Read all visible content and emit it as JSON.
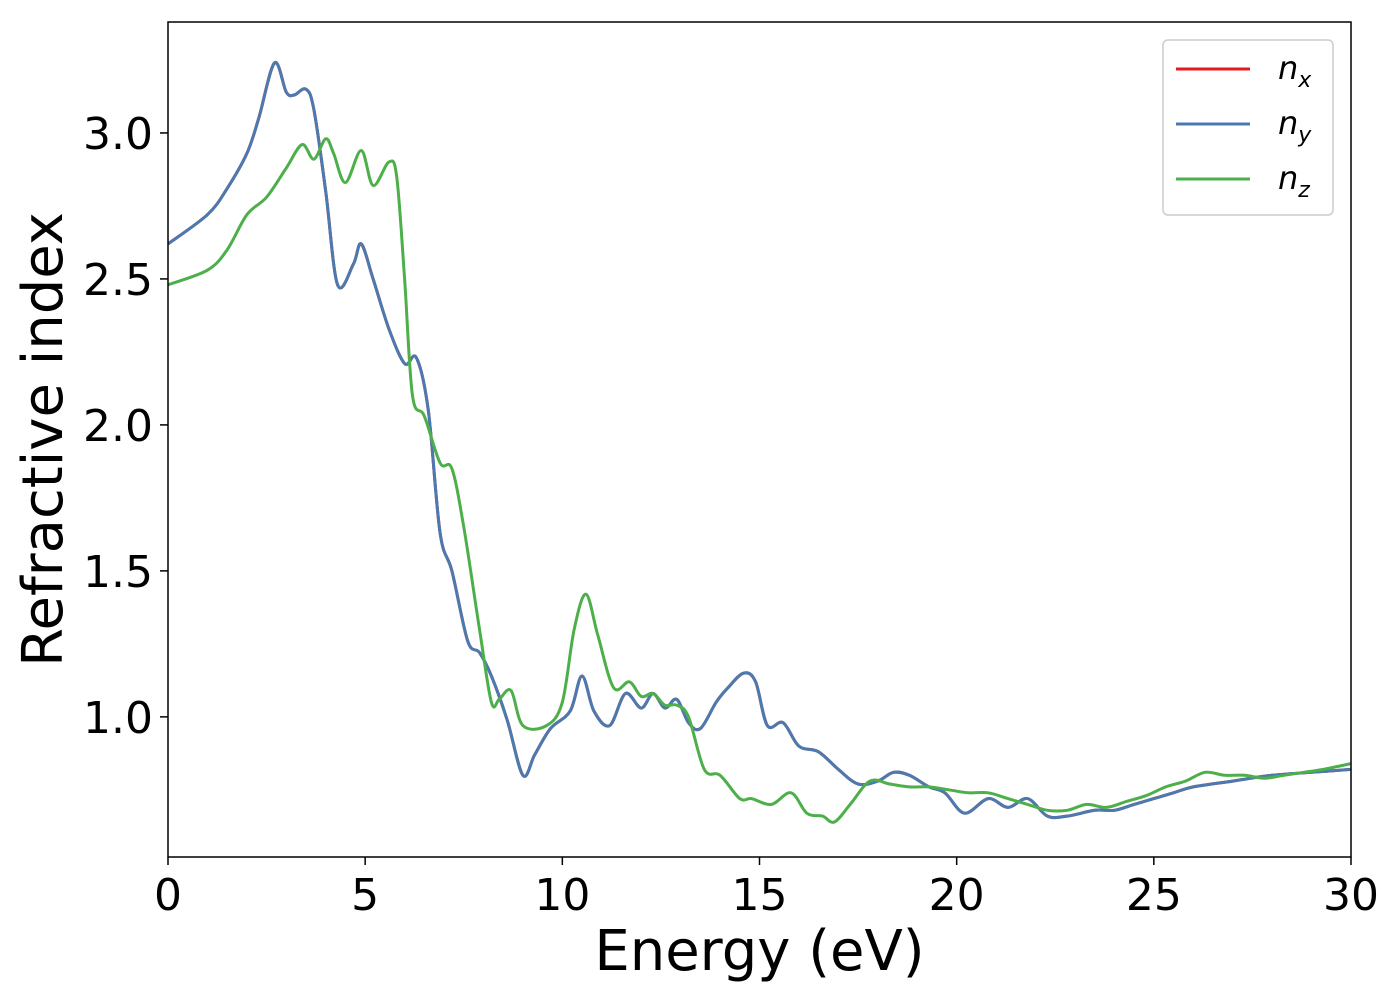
{
  "chart_data": {
    "type": "line",
    "xlabel": "Energy (eV)",
    "ylabel": "Refractive index",
    "xlim": [
      0,
      30
    ],
    "ylim": [
      0.52,
      3.38
    ],
    "xticks": [
      "0",
      "5",
      "10",
      "15",
      "20",
      "25",
      "30"
    ],
    "yticks": [
      "1.0",
      "1.5",
      "2.0",
      "2.5",
      "3.0"
    ],
    "grid": false,
    "legend_position": "top-right",
    "series": [
      {
        "name": "n",
        "subscript": "x",
        "color": "#e41a1c",
        "x": [
          0,
          1,
          1.5,
          2,
          2.3,
          2.7,
          3.0,
          3.2,
          3.5,
          3.7,
          4.0,
          4.3,
          4.7,
          4.9,
          5.2,
          5.6,
          6.0,
          6.3,
          6.6,
          6.9,
          7.2,
          7.6,
          7.9,
          8.2,
          8.6,
          9.0,
          9.3,
          9.7,
          10.2,
          10.5,
          10.8,
          11.2,
          11.6,
          12.0,
          12.3,
          12.6,
          12.9,
          13.2,
          13.5,
          13.9,
          14.2,
          14.6,
          14.9,
          15.2,
          15.6,
          16.0,
          16.5,
          17.0,
          17.5,
          18.0,
          18.4,
          18.8,
          19.3,
          19.7,
          20.2,
          20.8,
          21.3,
          21.8,
          22.3,
          22.8,
          23.5,
          24.0,
          24.5,
          25.0,
          25.5,
          26.0,
          27.0,
          28.0,
          29.0,
          30.0
        ],
        "y": [
          2.62,
          2.72,
          2.81,
          2.93,
          3.05,
          3.24,
          3.14,
          3.13,
          3.15,
          3.08,
          2.8,
          2.48,
          2.55,
          2.62,
          2.5,
          2.33,
          2.21,
          2.23,
          2.05,
          1.63,
          1.5,
          1.26,
          1.22,
          1.14,
          0.99,
          0.8,
          0.87,
          0.96,
          1.02,
          1.14,
          1.02,
          0.97,
          1.08,
          1.03,
          1.08,
          1.03,
          1.06,
          0.98,
          0.96,
          1.05,
          1.1,
          1.15,
          1.12,
          0.97,
          0.98,
          0.9,
          0.88,
          0.82,
          0.77,
          0.78,
          0.81,
          0.8,
          0.76,
          0.74,
          0.67,
          0.72,
          0.69,
          0.72,
          0.66,
          0.66,
          0.68,
          0.68,
          0.7,
          0.72,
          0.74,
          0.76,
          0.78,
          0.8,
          0.81,
          0.82
        ]
      },
      {
        "name": "n",
        "subscript": "y",
        "color": "#4a7ab0",
        "x": [
          0,
          1,
          1.5,
          2,
          2.3,
          2.7,
          3.0,
          3.2,
          3.5,
          3.7,
          4.0,
          4.3,
          4.7,
          4.9,
          5.2,
          5.6,
          6.0,
          6.3,
          6.6,
          6.9,
          7.2,
          7.6,
          7.9,
          8.2,
          8.6,
          9.0,
          9.3,
          9.7,
          10.2,
          10.5,
          10.8,
          11.2,
          11.6,
          12.0,
          12.3,
          12.6,
          12.9,
          13.2,
          13.5,
          13.9,
          14.2,
          14.6,
          14.9,
          15.2,
          15.6,
          16.0,
          16.5,
          17.0,
          17.5,
          18.0,
          18.4,
          18.8,
          19.3,
          19.7,
          20.2,
          20.8,
          21.3,
          21.8,
          22.3,
          22.8,
          23.5,
          24.0,
          24.5,
          25.0,
          25.5,
          26.0,
          27.0,
          28.0,
          29.0,
          30.0
        ],
        "y": [
          2.62,
          2.72,
          2.81,
          2.93,
          3.05,
          3.24,
          3.14,
          3.13,
          3.15,
          3.08,
          2.8,
          2.48,
          2.55,
          2.62,
          2.5,
          2.33,
          2.21,
          2.23,
          2.05,
          1.63,
          1.5,
          1.26,
          1.22,
          1.14,
          0.99,
          0.8,
          0.87,
          0.96,
          1.02,
          1.14,
          1.02,
          0.97,
          1.08,
          1.03,
          1.08,
          1.03,
          1.06,
          0.98,
          0.96,
          1.05,
          1.1,
          1.15,
          1.12,
          0.97,
          0.98,
          0.9,
          0.88,
          0.82,
          0.77,
          0.78,
          0.81,
          0.8,
          0.76,
          0.74,
          0.67,
          0.72,
          0.69,
          0.72,
          0.66,
          0.66,
          0.68,
          0.68,
          0.7,
          0.72,
          0.74,
          0.76,
          0.78,
          0.8,
          0.81,
          0.82
        ]
      },
      {
        "name": "n",
        "subscript": "z",
        "color": "#4daf4a",
        "x": [
          0,
          1,
          1.5,
          2,
          2.5,
          3.0,
          3.4,
          3.7,
          4.0,
          4.2,
          4.5,
          4.9,
          5.2,
          5.6,
          5.8,
          6.0,
          6.2,
          6.5,
          6.9,
          7.2,
          7.5,
          7.9,
          8.2,
          8.4,
          8.7,
          9.0,
          9.6,
          10.0,
          10.3,
          10.6,
          10.9,
          11.3,
          11.7,
          12.0,
          12.3,
          12.6,
          12.9,
          13.2,
          13.6,
          14.0,
          14.5,
          14.8,
          15.3,
          15.8,
          16.2,
          16.6,
          16.9,
          17.3,
          17.8,
          18.3,
          18.8,
          19.3,
          19.8,
          20.3,
          20.8,
          21.3,
          21.8,
          22.3,
          22.8,
          23.3,
          23.8,
          24.3,
          24.8,
          25.3,
          25.8,
          26.3,
          26.8,
          27.3,
          27.8,
          28.3,
          28.8,
          29.3,
          30.0
        ],
        "y": [
          2.48,
          2.53,
          2.6,
          2.72,
          2.78,
          2.88,
          2.96,
          2.91,
          2.98,
          2.93,
          2.83,
          2.94,
          2.82,
          2.9,
          2.85,
          2.5,
          2.1,
          2.03,
          1.87,
          1.85,
          1.65,
          1.3,
          1.05,
          1.06,
          1.09,
          0.97,
          0.97,
          1.05,
          1.3,
          1.42,
          1.28,
          1.1,
          1.12,
          1.07,
          1.08,
          1.04,
          1.04,
          1.0,
          0.82,
          0.8,
          0.72,
          0.72,
          0.7,
          0.74,
          0.67,
          0.66,
          0.64,
          0.7,
          0.78,
          0.77,
          0.76,
          0.76,
          0.75,
          0.74,
          0.74,
          0.72,
          0.7,
          0.68,
          0.68,
          0.7,
          0.69,
          0.71,
          0.73,
          0.76,
          0.78,
          0.81,
          0.8,
          0.8,
          0.79,
          0.8,
          0.81,
          0.82,
          0.84
        ]
      }
    ]
  }
}
